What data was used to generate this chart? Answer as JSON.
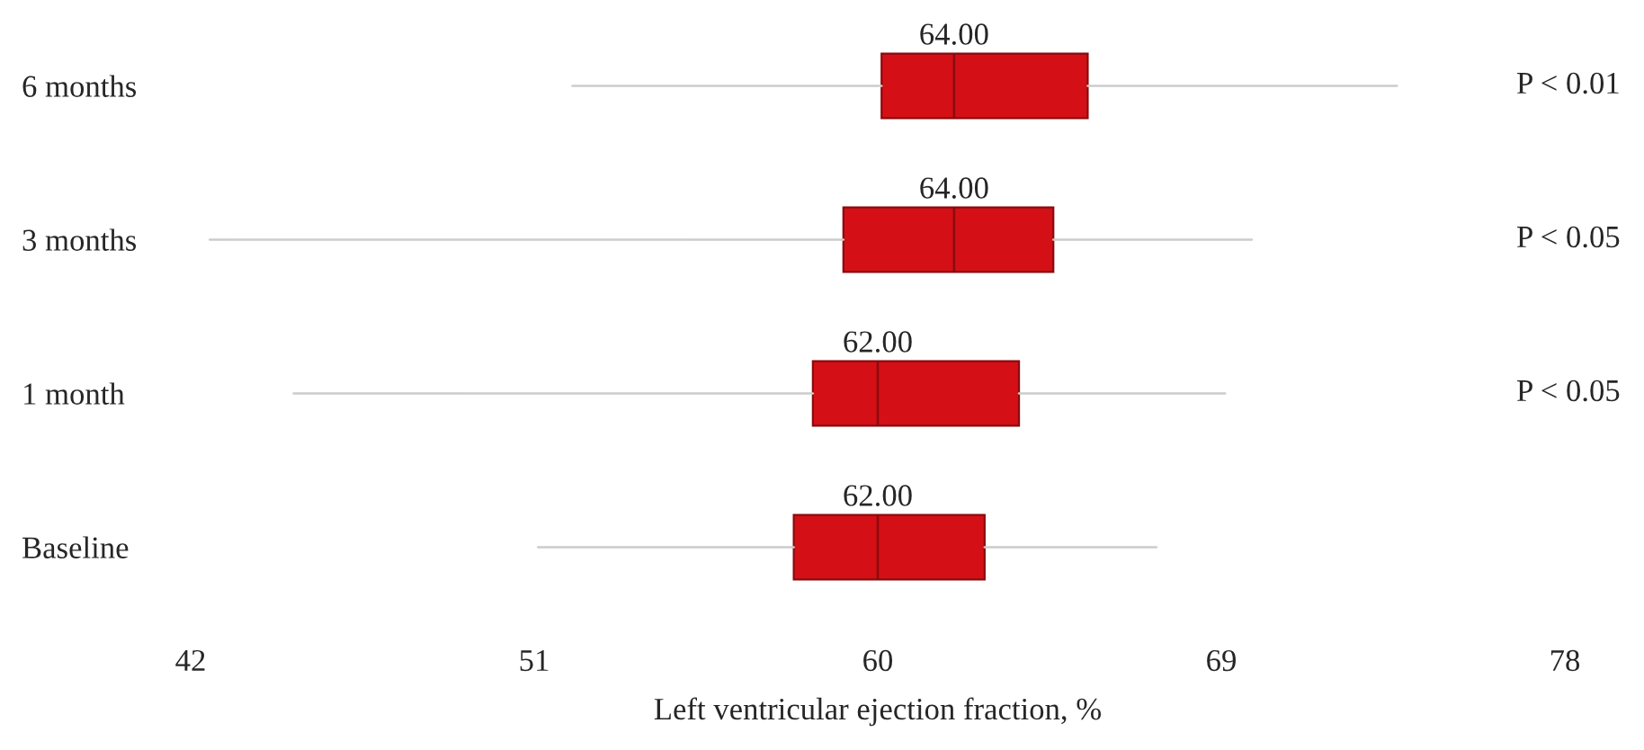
{
  "chart_data": {
    "type": "box",
    "orientation": "horizontal",
    "xlabel": "Left ventricular ejection fraction, %",
    "categories": [
      "6 months",
      "3 months",
      "1 month",
      "Baseline"
    ],
    "color": "#d41016",
    "boxes": [
      {
        "low": 52,
        "q1": 60.1,
        "median": 62,
        "q3": 65.5,
        "high": 73.6
      },
      {
        "low": 42.5,
        "q1": 59.1,
        "median": 62,
        "q3": 64.6,
        "high": 69.8
      },
      {
        "low": 44.7,
        "q1": 58.3,
        "median": 60,
        "q3": 63.7,
        "high": 69.1
      },
      {
        "low": 51.1,
        "q1": 57.8,
        "median": 60,
        "q3": 62.8,
        "high": 67.3
      }
    ],
    "xlim": [
      42,
      78
    ],
    "xticks": [
      42,
      51,
      60,
      69,
      78
    ],
    "grid": false,
    "annotations": [
      "64.00",
      "64.00",
      "62.00",
      "62.00",
      "P < 0.01",
      "P < 0.05",
      "P < 0.05"
    ]
  }
}
